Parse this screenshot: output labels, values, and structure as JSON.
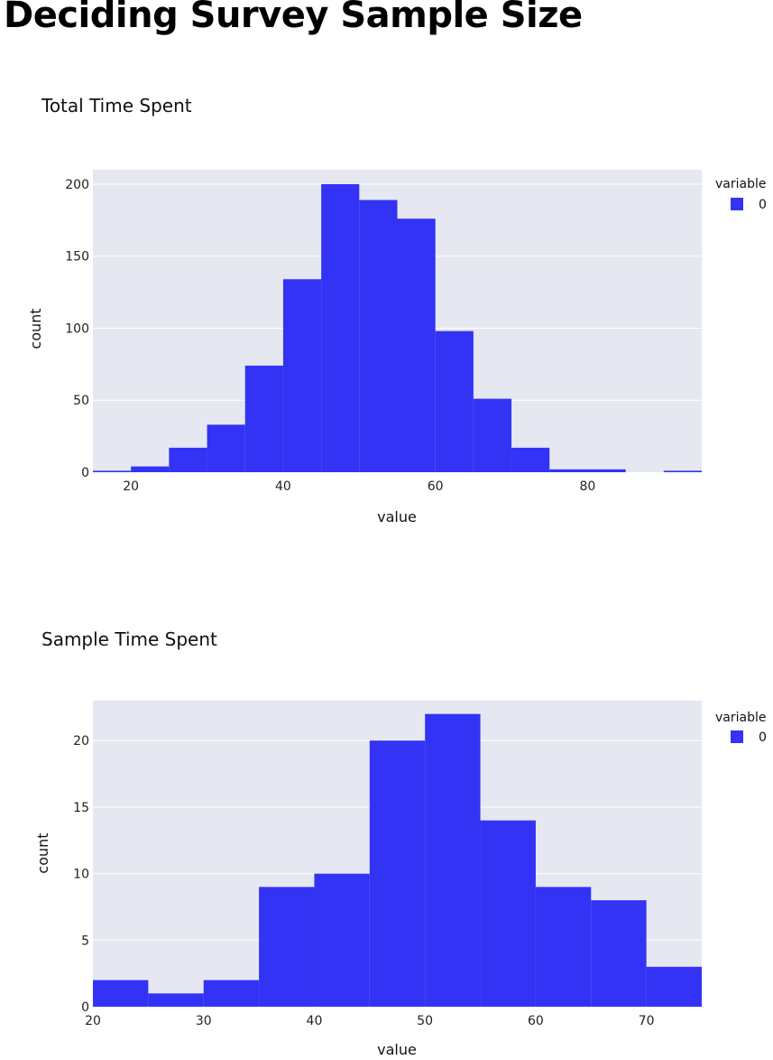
{
  "page": {
    "title": "Deciding Survey Sample Size"
  },
  "chart_data": [
    {
      "type": "bar",
      "title": "Total Time Spent",
      "xlabel": "value",
      "ylabel": "count",
      "xlim": [
        15,
        95
      ],
      "ylim": [
        0,
        210
      ],
      "xticks": [
        20,
        40,
        60,
        80
      ],
      "yticks": [
        0,
        50,
        100,
        150,
        200
      ],
      "grid": true,
      "legend": {
        "title": "variable",
        "position": "top-right",
        "entries": [
          "0"
        ]
      },
      "series": [
        {
          "name": "0",
          "color": "#3333f5",
          "bins": [
            {
              "start": 15,
              "end": 20,
              "count": 1
            },
            {
              "start": 20,
              "end": 25,
              "count": 4
            },
            {
              "start": 25,
              "end": 30,
              "count": 17
            },
            {
              "start": 30,
              "end": 35,
              "count": 33
            },
            {
              "start": 35,
              "end": 40,
              "count": 74
            },
            {
              "start": 40,
              "end": 45,
              "count": 134
            },
            {
              "start": 45,
              "end": 50,
              "count": 200
            },
            {
              "start": 50,
              "end": 55,
              "count": 189
            },
            {
              "start": 55,
              "end": 60,
              "count": 176
            },
            {
              "start": 60,
              "end": 65,
              "count": 98
            },
            {
              "start": 65,
              "end": 70,
              "count": 51
            },
            {
              "start": 70,
              "end": 75,
              "count": 17
            },
            {
              "start": 75,
              "end": 80,
              "count": 2
            },
            {
              "start": 80,
              "end": 85,
              "count": 2
            },
            {
              "start": 85,
              "end": 90,
              "count": 0
            },
            {
              "start": 90,
              "end": 95,
              "count": 1
            }
          ]
        }
      ]
    },
    {
      "type": "bar",
      "title": "Sample Time Spent",
      "xlabel": "value",
      "ylabel": "count",
      "xlim": [
        20,
        75
      ],
      "ylim": [
        0,
        23
      ],
      "xticks": [
        20,
        30,
        40,
        50,
        60,
        70
      ],
      "yticks": [
        0,
        5,
        10,
        15,
        20
      ],
      "grid": true,
      "legend": {
        "title": "variable",
        "position": "top-right",
        "entries": [
          "0"
        ]
      },
      "series": [
        {
          "name": "0",
          "color": "#3333f5",
          "bins": [
            {
              "start": 20,
              "end": 25,
              "count": 2
            },
            {
              "start": 25,
              "end": 30,
              "count": 1
            },
            {
              "start": 30,
              "end": 35,
              "count": 2
            },
            {
              "start": 35,
              "end": 40,
              "count": 9
            },
            {
              "start": 40,
              "end": 45,
              "count": 10
            },
            {
              "start": 45,
              "end": 50,
              "count": 20
            },
            {
              "start": 50,
              "end": 55,
              "count": 22
            },
            {
              "start": 55,
              "end": 60,
              "count": 14
            },
            {
              "start": 60,
              "end": 65,
              "count": 9
            },
            {
              "start": 65,
              "end": 70,
              "count": 8
            },
            {
              "start": 70,
              "end": 75,
              "count": 3
            }
          ]
        }
      ]
    }
  ]
}
